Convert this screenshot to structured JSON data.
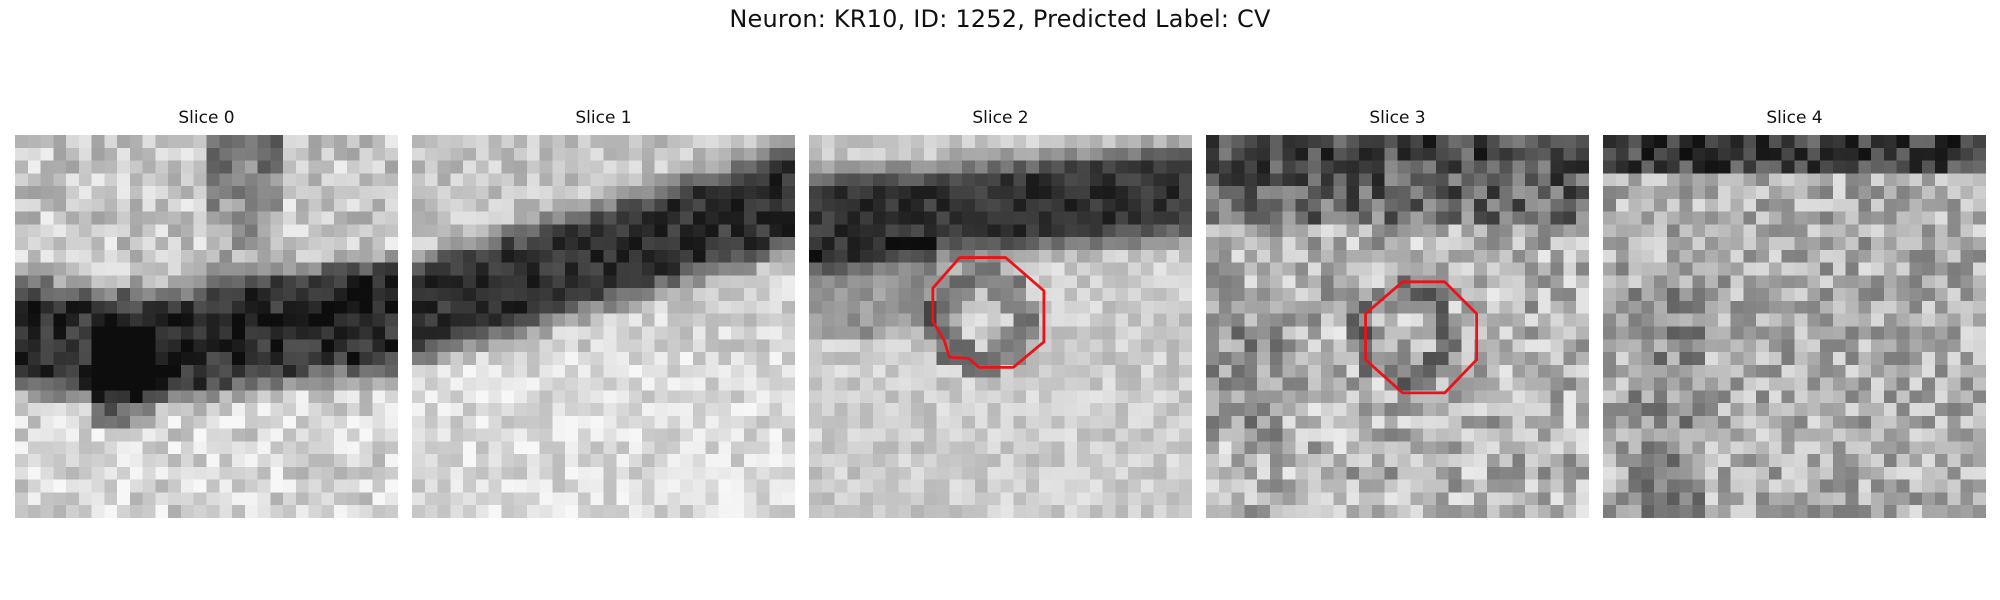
{
  "figure": {
    "title": "Neuron: KR10, ID: 1252, Predicted Label: CV"
  },
  "panels": [
    {
      "title": "Slice 0",
      "has_contour": false
    },
    {
      "title": "Slice 1",
      "has_contour": false
    },
    {
      "title": "Slice 2",
      "has_contour": true
    },
    {
      "title": "Slice 3",
      "has_contour": true
    },
    {
      "title": "Slice 4",
      "has_contour": false
    }
  ],
  "colors": {
    "contour": "#e8141a",
    "background": "#ffffff"
  }
}
